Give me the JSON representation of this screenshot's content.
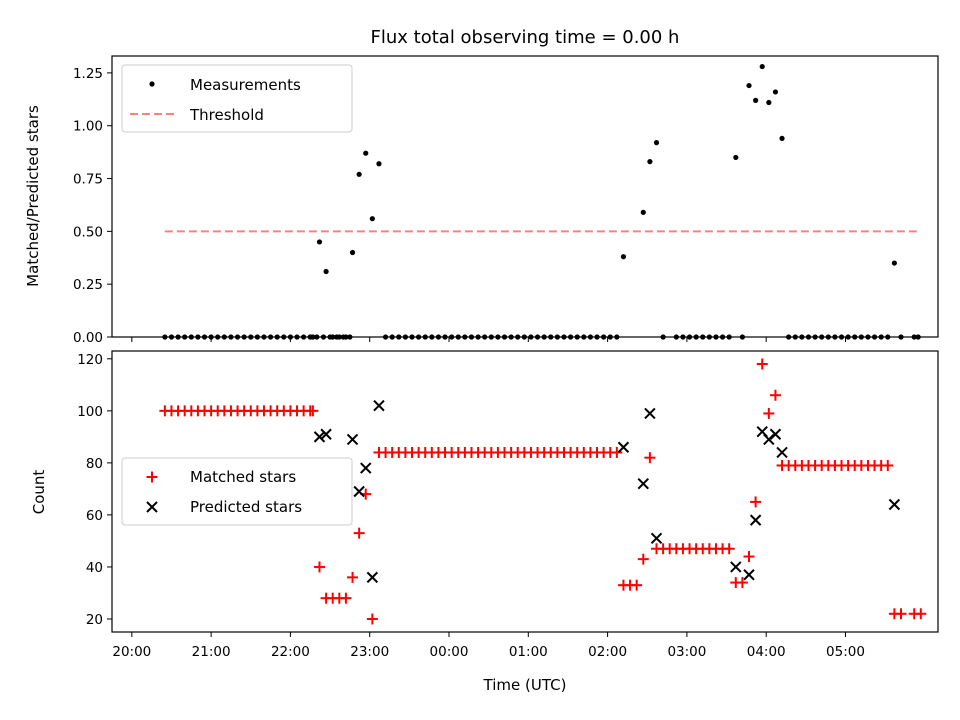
{
  "chart_data": [
    {
      "type": "scatter",
      "title": "Flux total observing time = 0.00 h",
      "xlabel": "",
      "ylabel": "Matched/Predicted stars",
      "xlim": [
        -30,
        595
      ],
      "ylim": [
        0,
        1.33
      ],
      "yticks": [
        0,
        0.25,
        0.5,
        0.75,
        1.0,
        1.25
      ],
      "ytick_labels": [
        "0.00",
        "0.25",
        "0.50",
        "0.75",
        "1.00",
        "1.25"
      ],
      "legend_position": "top-left",
      "series": [
        {
          "name": "Measurements",
          "color": "#000000",
          "marker": "dot",
          "points": [
            [
              10,
              0
            ],
            [
              15,
              0
            ],
            [
              20,
              0
            ],
            [
              25,
              0
            ],
            [
              30,
              0
            ],
            [
              35,
              0
            ],
            [
              40,
              0
            ],
            [
              45,
              0
            ],
            [
              50,
              0
            ],
            [
              55,
              0
            ],
            [
              60,
              0
            ],
            [
              65,
              0
            ],
            [
              70,
              0
            ],
            [
              75,
              0
            ],
            [
              80,
              0
            ],
            [
              85,
              0
            ],
            [
              90,
              0
            ],
            [
              95,
              0
            ],
            [
              100,
              0
            ],
            [
              105,
              0
            ],
            [
              110,
              0
            ],
            [
              115,
              0
            ],
            [
              120,
              0
            ],
            [
              125,
              0
            ],
            [
              130,
              0
            ],
            [
              135,
              0
            ],
            [
              140,
              0
            ],
            [
              145,
              0
            ],
            [
              150,
              0
            ],
            [
              120,
              0
            ],
            [
              122,
              0
            ],
            [
              127,
              0.45
            ],
            [
              132,
              0.31
            ],
            [
              137,
              0
            ],
            [
              142,
              0
            ],
            [
              147,
              0
            ],
            [
              152,
              0.4
            ],
            [
              157,
              0.77
            ],
            [
              162,
              0.87
            ],
            [
              167,
              0.56
            ],
            [
              172,
              0.82
            ],
            [
              177,
              0
            ],
            [
              182,
              0
            ],
            [
              187,
              0
            ],
            [
              192,
              0
            ],
            [
              197,
              0
            ],
            [
              202,
              0
            ],
            [
              207,
              0
            ],
            [
              212,
              0
            ],
            [
              217,
              0
            ],
            [
              222,
              0
            ],
            [
              227,
              0
            ],
            [
              232,
              0
            ],
            [
              237,
              0
            ],
            [
              242,
              0
            ],
            [
              247,
              0
            ],
            [
              252,
              0
            ],
            [
              257,
              0
            ],
            [
              262,
              0
            ],
            [
              267,
              0
            ],
            [
              272,
              0
            ],
            [
              277,
              0
            ],
            [
              282,
              0
            ],
            [
              287,
              0
            ],
            [
              292,
              0
            ],
            [
              297,
              0
            ],
            [
              302,
              0
            ],
            [
              307,
              0
            ],
            [
              312,
              0
            ],
            [
              317,
              0
            ],
            [
              322,
              0
            ],
            [
              327,
              0
            ],
            [
              332,
              0
            ],
            [
              337,
              0
            ],
            [
              342,
              0
            ],
            [
              347,
              0
            ],
            [
              352,
              0
            ],
            [
              357,
              0.38
            ],
            [
              372,
              0.59
            ],
            [
              377,
              0.83
            ],
            [
              382,
              0.92
            ],
            [
              387,
              0
            ],
            [
              397,
              0
            ],
            [
              402,
              0
            ],
            [
              407,
              0
            ],
            [
              412,
              0
            ],
            [
              417,
              0
            ],
            [
              422,
              0
            ],
            [
              427,
              0
            ],
            [
              432,
              0
            ],
            [
              437,
              0
            ],
            [
              442,
              0.85
            ],
            [
              447,
              0
            ],
            [
              452,
              1.19
            ],
            [
              457,
              1.12
            ],
            [
              462,
              1.28
            ],
            [
              467,
              1.11
            ],
            [
              472,
              1.16
            ],
            [
              477,
              0.94
            ],
            [
              482,
              0
            ],
            [
              487,
              0
            ],
            [
              492,
              0
            ],
            [
              497,
              0
            ],
            [
              502,
              0
            ],
            [
              507,
              0
            ],
            [
              512,
              0
            ],
            [
              517,
              0
            ],
            [
              522,
              0
            ],
            [
              527,
              0
            ],
            [
              532,
              0
            ],
            [
              537,
              0
            ],
            [
              542,
              0
            ],
            [
              547,
              0
            ],
            [
              552,
              0
            ],
            [
              557,
              0
            ],
            [
              562,
              0.35
            ],
            [
              567,
              0
            ],
            [
              577,
              0
            ],
            [
              580,
              0
            ]
          ]
        },
        {
          "name": "Threshold",
          "color": "#ff7f7f",
          "style": "dashed",
          "x": [
            10,
            580
          ],
          "y": [
            0.5,
            0.5
          ]
        }
      ]
    },
    {
      "type": "scatter",
      "title": "",
      "xlabel": "Time (UTC)",
      "ylabel": "Count",
      "xlim": [
        -30,
        595
      ],
      "ylim": [
        15,
        123
      ],
      "yticks": [
        20,
        40,
        60,
        80,
        100,
        120
      ],
      "ytick_labels": [
        "20",
        "40",
        "60",
        "80",
        "100",
        "120"
      ],
      "xticks": [
        -15,
        45,
        105,
        165,
        225,
        285,
        345,
        405,
        465,
        525
      ],
      "xtick_labels": [
        "20:00",
        "21:00",
        "22:00",
        "23:00",
        "00:00",
        "01:00",
        "02:00",
        "03:00",
        "04:00",
        "05:00"
      ],
      "visible_xtick_labels": [
        "20:00",
        "21:00",
        "22:00",
        "23:00",
        "00:00",
        "01:00",
        "02:00",
        "03:00",
        "04:00"
      ],
      "legend_position": "center-left",
      "series": [
        {
          "name": "Matched stars",
          "color": "#ff0000",
          "marker": "plus",
          "points": [
            [
              10,
              100
            ],
            [
              15,
              100
            ],
            [
              20,
              100
            ],
            [
              25,
              100
            ],
            [
              30,
              100
            ],
            [
              35,
              100
            ],
            [
              40,
              100
            ],
            [
              45,
              100
            ],
            [
              50,
              100
            ],
            [
              55,
              100
            ],
            [
              60,
              100
            ],
            [
              65,
              100
            ],
            [
              70,
              100
            ],
            [
              75,
              100
            ],
            [
              80,
              100
            ],
            [
              85,
              100
            ],
            [
              90,
              100
            ],
            [
              95,
              100
            ],
            [
              100,
              100
            ],
            [
              105,
              100
            ],
            [
              110,
              100
            ],
            [
              115,
              100
            ],
            [
              120,
              100
            ],
            [
              122,
              100
            ],
            [
              127,
              40
            ],
            [
              132,
              28
            ],
            [
              137,
              28
            ],
            [
              142,
              28
            ],
            [
              147,
              28
            ],
            [
              152,
              36
            ],
            [
              157,
              53
            ],
            [
              162,
              68
            ],
            [
              167,
              20
            ],
            [
              172,
              84
            ],
            [
              177,
              84
            ],
            [
              182,
              84
            ],
            [
              187,
              84
            ],
            [
              192,
              84
            ],
            [
              197,
              84
            ],
            [
              202,
              84
            ],
            [
              207,
              84
            ],
            [
              212,
              84
            ],
            [
              217,
              84
            ],
            [
              222,
              84
            ],
            [
              227,
              84
            ],
            [
              232,
              84
            ],
            [
              237,
              84
            ],
            [
              242,
              84
            ],
            [
              247,
              84
            ],
            [
              252,
              84
            ],
            [
              257,
              84
            ],
            [
              262,
              84
            ],
            [
              267,
              84
            ],
            [
              272,
              84
            ],
            [
              277,
              84
            ],
            [
              282,
              84
            ],
            [
              287,
              84
            ],
            [
              292,
              84
            ],
            [
              297,
              84
            ],
            [
              302,
              84
            ],
            [
              307,
              84
            ],
            [
              312,
              84
            ],
            [
              317,
              84
            ],
            [
              322,
              84
            ],
            [
              327,
              84
            ],
            [
              332,
              84
            ],
            [
              337,
              84
            ],
            [
              342,
              84
            ],
            [
              347,
              84
            ],
            [
              352,
              84
            ],
            [
              357,
              33
            ],
            [
              362,
              33
            ],
            [
              367,
              33
            ],
            [
              372,
              43
            ],
            [
              377,
              82
            ],
            [
              382,
              47
            ],
            [
              387,
              47
            ],
            [
              392,
              47
            ],
            [
              397,
              47
            ],
            [
              402,
              47
            ],
            [
              407,
              47
            ],
            [
              412,
              47
            ],
            [
              417,
              47
            ],
            [
              422,
              47
            ],
            [
              427,
              47
            ],
            [
              432,
              47
            ],
            [
              437,
              47
            ],
            [
              442,
              34
            ],
            [
              447,
              34
            ],
            [
              452,
              44
            ],
            [
              457,
              65
            ],
            [
              462,
              118
            ],
            [
              467,
              99
            ],
            [
              472,
              106
            ],
            [
              477,
              79
            ],
            [
              482,
              79
            ],
            [
              487,
              79
            ],
            [
              492,
              79
            ],
            [
              497,
              79
            ],
            [
              502,
              79
            ],
            [
              507,
              79
            ],
            [
              512,
              79
            ],
            [
              517,
              79
            ],
            [
              522,
              79
            ],
            [
              527,
              79
            ],
            [
              532,
              79
            ],
            [
              537,
              79
            ],
            [
              542,
              79
            ],
            [
              547,
              79
            ],
            [
              552,
              79
            ],
            [
              557,
              79
            ],
            [
              562,
              22
            ],
            [
              567,
              22
            ],
            [
              577,
              22
            ],
            [
              582,
              22
            ]
          ]
        },
        {
          "name": "Predicted stars",
          "color": "#000000",
          "marker": "x",
          "points": [
            [
              127,
              90
            ],
            [
              132,
              91
            ],
            [
              152,
              89
            ],
            [
              157,
              69
            ],
            [
              162,
              78
            ],
            [
              167,
              36
            ],
            [
              172,
              102
            ],
            [
              357,
              86
            ],
            [
              372,
              72
            ],
            [
              377,
              99
            ],
            [
              382,
              51
            ],
            [
              442,
              40
            ],
            [
              452,
              37
            ],
            [
              457,
              58
            ],
            [
              462,
              92
            ],
            [
              467,
              89
            ],
            [
              472,
              91
            ],
            [
              477,
              84
            ],
            [
              562,
              64
            ]
          ]
        }
      ]
    }
  ]
}
